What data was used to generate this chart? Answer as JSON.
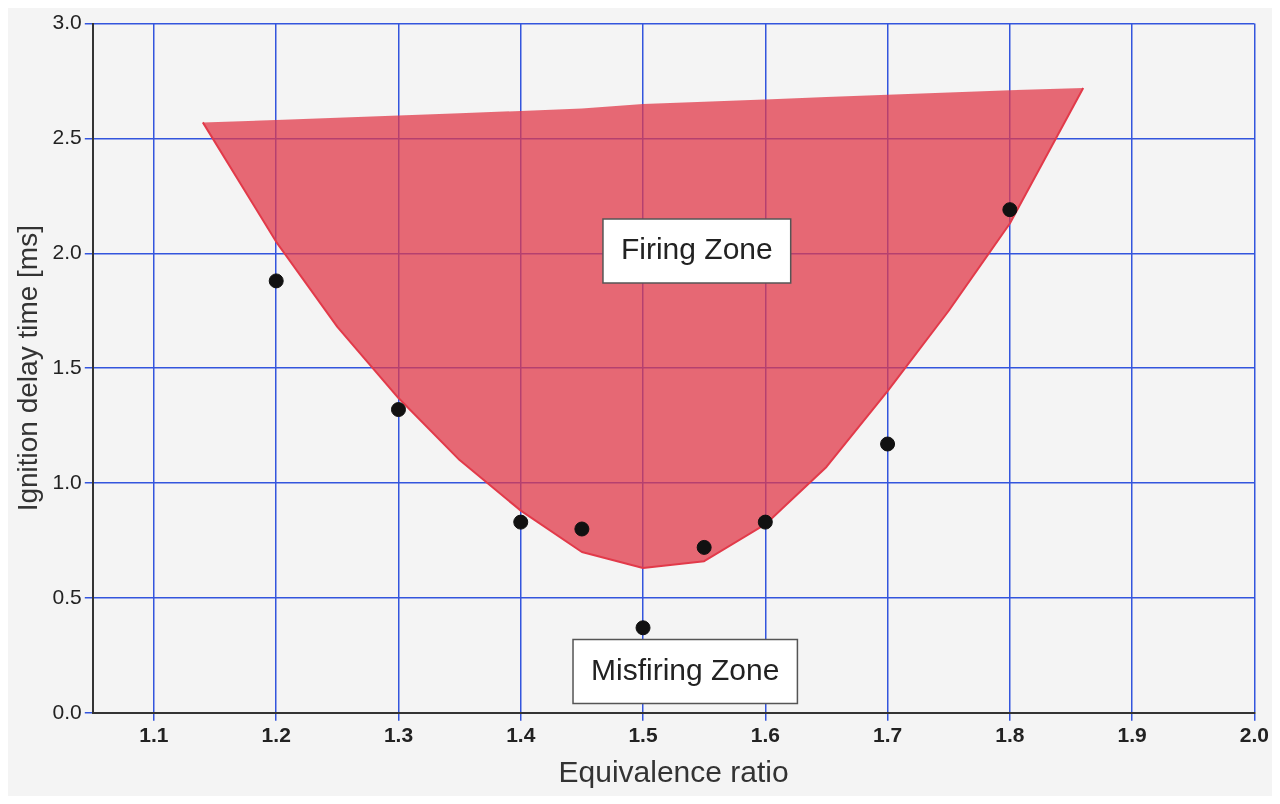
{
  "chart_data": {
    "type": "scatter",
    "xlabel": "Equivalence ratio",
    "ylabel": "Ignition delay time [ms]",
    "xlim": [
      1.05,
      2.0
    ],
    "ylim": [
      0,
      3.0
    ],
    "xticks": [
      1.1,
      1.2,
      1.3,
      1.4,
      1.5,
      1.6,
      1.7,
      1.8,
      1.9,
      {
        "value": 2,
        "label": "2.0"
      }
    ],
    "yticks": [
      {
        "value": 0,
        "label": "0.0"
      },
      0.5,
      {
        "value": 1,
        "label": "1.0"
      },
      1.5,
      {
        "value": 2,
        "label": "2.0"
      },
      2.5,
      {
        "value": 3,
        "label": "3.0"
      }
    ],
    "grid": true,
    "legend": false,
    "series": [
      {
        "type": "line",
        "color": "#e23a4a",
        "x": [
          1.14,
          1.2,
          1.25,
          1.3,
          1.35,
          1.4,
          1.45,
          1.5,
          1.55,
          1.6,
          1.65,
          1.7,
          1.75,
          1.8,
          1.86
        ],
        "values": [
          2.57,
          2.05,
          1.68,
          1.37,
          1.1,
          0.88,
          0.7,
          0.63,
          0.66,
          0.82,
          1.07,
          1.4,
          1.75,
          2.13,
          2.72
        ],
        "lower": [
          2.57,
          2.05,
          1.68,
          1.37,
          1.1,
          0.88,
          0.7,
          0.63,
          0.66,
          0.82,
          1.07,
          1.4,
          1.75,
          2.13,
          2.72
        ],
        "upper": [
          2.57,
          2.58,
          2.59,
          2.6,
          2.61,
          2.62,
          2.63,
          2.65,
          2.66,
          2.67,
          2.68,
          2.69,
          2.7,
          2.71,
          2.72
        ]
      },
      {
        "type": "scatter",
        "color": "#111111",
        "marker": "circle",
        "x": [
          1.2,
          1.3,
          1.4,
          1.45,
          1.5,
          1.55,
          1.6,
          1.7,
          1.8
        ],
        "values": [
          1.88,
          1.32,
          0.83,
          0.8,
          0.37,
          0.72,
          0.83,
          1.17,
          2.19
        ]
      }
    ],
    "annotations": [
      "Firing Zone",
      "Misfiring Zone"
    ]
  }
}
